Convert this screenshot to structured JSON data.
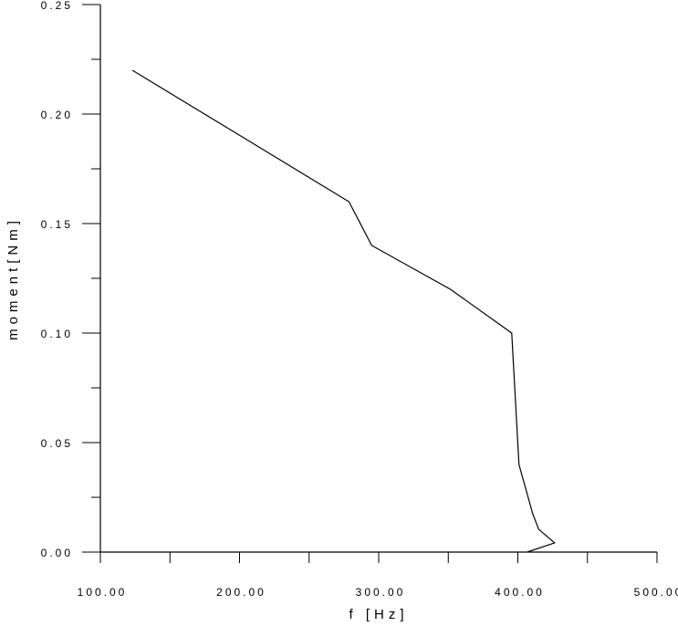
{
  "chart_data": {
    "type": "line",
    "title": "",
    "xlabel": "f [Hz]",
    "ylabel": "moment[Nm]",
    "xlim": [
      100,
      500
    ],
    "ylim": [
      0,
      0.25
    ],
    "x_ticks": [
      "100.00",
      "200.00",
      "300.00",
      "400.00",
      "500.00"
    ],
    "y_ticks": [
      "0.00",
      "0.05",
      "0.10",
      "0.15",
      "0.20",
      "0.25"
    ],
    "grid": false,
    "line_color": "#000000",
    "series": [
      {
        "x": [
          123,
          278.6,
          295,
          351.5,
          395.6,
          400.8,
          410.7,
          415,
          426.4,
          406.7
        ],
        "y": [
          0.22,
          0.16,
          0.14,
          0.12,
          0.1,
          0.04,
          0.0175,
          0.0104,
          0.0042,
          0.0
        ]
      }
    ]
  }
}
